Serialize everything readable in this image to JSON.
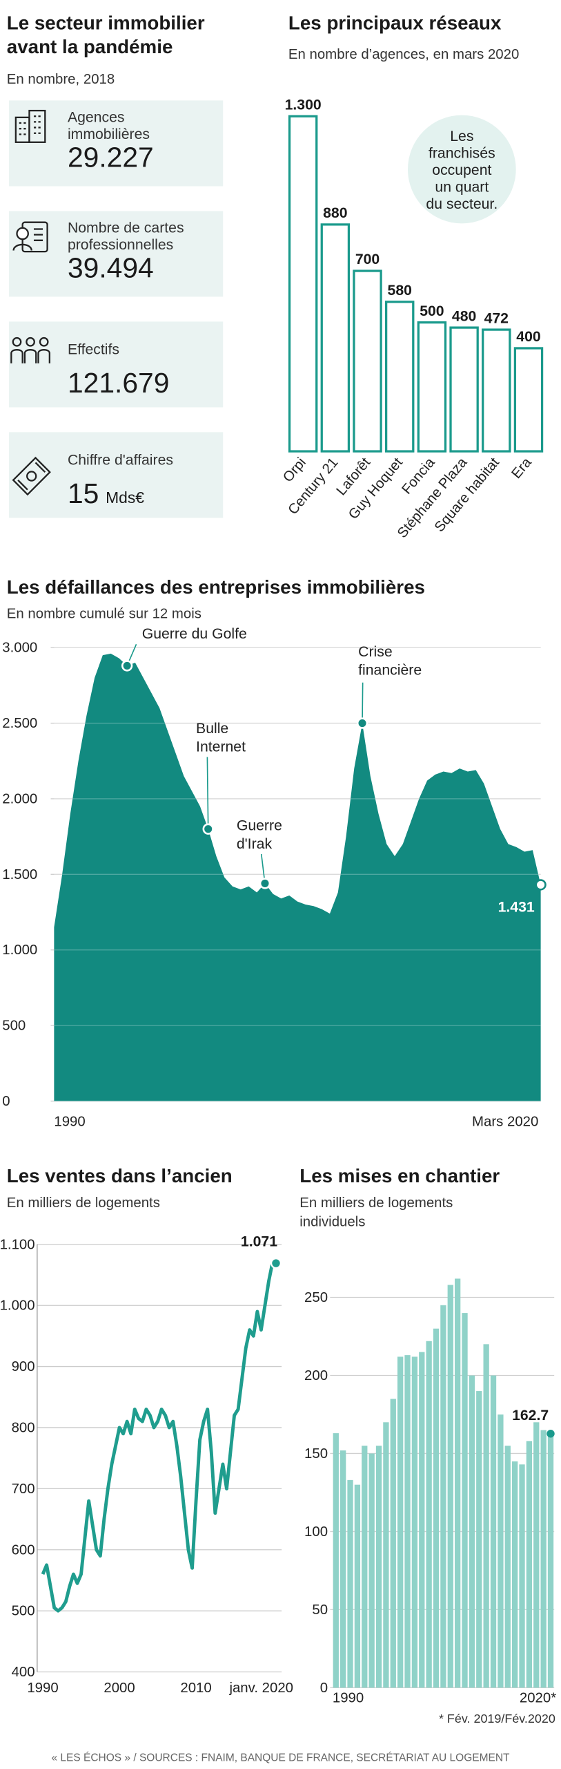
{
  "key_figures": {
    "title": [
      "Le secteur immobilier",
      "avant la pandémie"
    ],
    "subtitle": "En nombre, 2018",
    "items": [
      {
        "label": [
          "Agences",
          "immobilières"
        ],
        "value": "29.227"
      },
      {
        "label": [
          "Nombre de cartes",
          "professionnelles"
        ],
        "value": "39.494"
      },
      {
        "label": [
          "Effectifs"
        ],
        "value": "121.679"
      },
      {
        "label": [
          "Chiffre d'affaires"
        ],
        "value": "15",
        "unit": "Mds€"
      }
    ]
  },
  "chart_data": [
    {
      "type": "bar",
      "title": "Les principaux réseaux",
      "subtitle": "En nombre d’agences, en mars 2020",
      "categories": [
        "Orpi",
        "Century 21",
        "Laforêt",
        "Guy Hoquet",
        "Foncia",
        "Stéphane Plaza",
        "Square habitat",
        "Era"
      ],
      "values": [
        1300,
        880,
        700,
        580,
        500,
        480,
        472,
        400
      ],
      "value_labels": [
        "1.300",
        "880",
        "700",
        "580",
        "500",
        "480",
        "472",
        "400"
      ],
      "color": "#1a9a8c",
      "annotation": [
        "Les",
        "franchisés",
        "occupent",
        "un quart",
        "du secteur."
      ]
    },
    {
      "type": "area",
      "title": "Les défaillances des entreprises immobilières",
      "subtitle": "En nombre cumulé sur 12 mois",
      "categories": [
        "1990",
        null,
        null,
        null,
        null,
        null,
        null,
        null,
        null,
        null,
        null,
        null,
        null,
        null,
        null,
        null,
        null,
        null,
        null,
        null,
        null,
        null,
        null,
        null,
        null,
        null,
        null,
        null,
        null,
        null,
        null,
        null,
        null,
        null,
        null,
        null,
        null,
        null,
        null,
        null,
        null,
        null,
        null,
        null,
        null,
        null,
        null,
        null,
        null,
        null,
        null,
        null,
        null,
        null,
        null,
        null,
        null,
        null,
        null,
        null,
        "Mars 2020"
      ],
      "values": [
        1150,
        1500,
        1900,
        2250,
        2550,
        2800,
        2950,
        2960,
        2930,
        2880,
        2900,
        2800,
        2700,
        2600,
        2450,
        2300,
        2150,
        2050,
        1950,
        1800,
        1620,
        1480,
        1420,
        1400,
        1420,
        1380,
        1440,
        1370,
        1340,
        1360,
        1320,
        1300,
        1290,
        1270,
        1240,
        1380,
        1750,
        2200,
        2500,
        2150,
        1900,
        1700,
        1620,
        1700,
        1850,
        2000,
        2120,
        2160,
        2180,
        2170,
        2200,
        2180,
        2190,
        2100,
        1950,
        1800,
        1700,
        1680,
        1650,
        1660,
        1431
      ],
      "value_labels": [
        null,
        null,
        null,
        null,
        null,
        null,
        null,
        null,
        null,
        null,
        null,
        null,
        null,
        null,
        null,
        null,
        null,
        null,
        null,
        null,
        null,
        null,
        null,
        null,
        null,
        null,
        null,
        null,
        null,
        null,
        null,
        null,
        null,
        null,
        null,
        null,
        null,
        null,
        null,
        null,
        null,
        null,
        null,
        null,
        null,
        null,
        null,
        null,
        null,
        null,
        null,
        null,
        null,
        null,
        null,
        null,
        null,
        null,
        null,
        null,
        "1.431"
      ],
      "color": "#128a80",
      "ylim": [
        0,
        3000
      ],
      "yticks": [
        0,
        500,
        {
          "value": 1000,
          "label": "1.000"
        },
        {
          "value": 1500,
          "label": "1.500"
        },
        {
          "value": 2000,
          "label": "2.000"
        },
        {
          "value": 2500,
          "label": "2.500"
        },
        {
          "value": 3000,
          "label": "3.000"
        }
      ],
      "grid": true,
      "annotations": [
        [
          "Guerre du Golfe"
        ],
        [
          "Bulle",
          "Internet"
        ],
        [
          "Guerre",
          "d'Irak"
        ],
        [
          "Crise",
          "financière"
        ]
      ]
    },
    {
      "type": "line",
      "title": "Les ventes dans l’ancien",
      "subtitle": "En milliers de logements",
      "categories": [
        "1990",
        null,
        null,
        null,
        null,
        null,
        null,
        null,
        null,
        null,
        null,
        null,
        null,
        null,
        null,
        null,
        null,
        null,
        null,
        null,
        "2000",
        null,
        null,
        null,
        null,
        null,
        null,
        null,
        null,
        null,
        null,
        null,
        null,
        null,
        null,
        null,
        null,
        null,
        null,
        null,
        "2010",
        null,
        null,
        null,
        null,
        null,
        null,
        null,
        null,
        null,
        null,
        null,
        null,
        null,
        null,
        null,
        null,
        null,
        null,
        null,
        "janv. 2020"
      ],
      "values": [
        560,
        575,
        540,
        505,
        500,
        505,
        515,
        540,
        560,
        545,
        560,
        620,
        680,
        640,
        600,
        590,
        650,
        700,
        740,
        770,
        800,
        790,
        810,
        790,
        830,
        815,
        810,
        830,
        820,
        800,
        810,
        830,
        820,
        800,
        810,
        770,
        720,
        660,
        600,
        570,
        680,
        780,
        810,
        830,
        760,
        660,
        700,
        740,
        700,
        760,
        820,
        830,
        880,
        930,
        960,
        950,
        990,
        960,
        1000,
        1040,
        1071
      ],
      "value_labels": [
        null,
        null,
        null,
        null,
        null,
        null,
        null,
        null,
        null,
        null,
        null,
        null,
        null,
        null,
        null,
        null,
        null,
        null,
        null,
        null,
        null,
        null,
        null,
        null,
        null,
        null,
        null,
        null,
        null,
        null,
        null,
        null,
        null,
        null,
        null,
        null,
        null,
        null,
        null,
        null,
        null,
        null,
        null,
        null,
        null,
        null,
        null,
        null,
        null,
        null,
        null,
        null,
        null,
        null,
        null,
        null,
        null,
        null,
        null,
        null,
        "1.071"
      ],
      "color": "#1f9d8e",
      "ylim": [
        400,
        1100
      ],
      "yticks": [
        400,
        500,
        600,
        700,
        800,
        900,
        {
          "value": 1000,
          "label": "1.000"
        },
        {
          "value": 1100,
          "label": "1.100"
        }
      ],
      "grid": true
    },
    {
      "type": "bar",
      "title": "Les mises en chantier",
      "subtitle": [
        "En milliers de logements",
        "individuels"
      ],
      "categories": [
        "1990",
        null,
        null,
        null,
        null,
        null,
        null,
        null,
        null,
        null,
        null,
        null,
        null,
        null,
        null,
        null,
        null,
        null,
        null,
        null,
        null,
        null,
        null,
        null,
        null,
        null,
        null,
        null,
        null,
        null,
        "2020*"
      ],
      "values": [
        163,
        152,
        133,
        130,
        155,
        150,
        155,
        170,
        185,
        212,
        213,
        212,
        215,
        222,
        230,
        245,
        258,
        262,
        240,
        200,
        190,
        220,
        200,
        175,
        155,
        145,
        143,
        158,
        170,
        165,
        162.7
      ],
      "value_labels": [
        null,
        null,
        null,
        null,
        null,
        null,
        null,
        null,
        null,
        null,
        null,
        null,
        null,
        null,
        null,
        null,
        null,
        null,
        null,
        null,
        null,
        null,
        null,
        null,
        null,
        null,
        null,
        null,
        null,
        null,
        "162.7"
      ],
      "color": "#8fd2c8",
      "ylim": [
        0,
        250
      ],
      "yticks": [
        0,
        50,
        100,
        150,
        200,
        250
      ],
      "grid": true,
      "footnote": "* Fév. 2019/Fév.2020"
    }
  ],
  "footer": "« LES ÉCHOS » / SOURCES : FNAIM, BANQUE DE FRANCE, SECRÉTARIAT AU LOGEMENT"
}
